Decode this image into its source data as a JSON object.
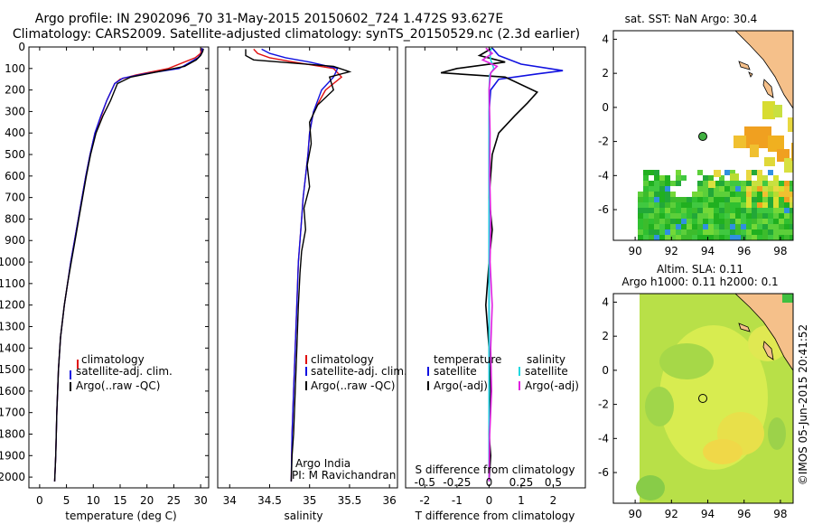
{
  "header": {
    "line1": "Argo profile: IN 2902096_70 31-May-2015 20150602_724 1.472S 93.627E",
    "line2": "Climatology: CARS2009. Satellite-adjusted climatology: synTS_20150529.nc (2.3d earlier)"
  },
  "colors": {
    "clim": "#e01010",
    "sat": "#1010e0",
    "argo": "#000000",
    "sat_s": "#20d8e0",
    "argo_s": "#e020e0",
    "land": "#f5c08a"
  },
  "depth_axis": {
    "ticks": [
      0,
      100,
      200,
      300,
      400,
      500,
      600,
      700,
      800,
      900,
      1000,
      1100,
      1200,
      1300,
      1400,
      1500,
      1600,
      1700,
      1800,
      1900,
      2000
    ],
    "ylim": [
      0,
      2050
    ]
  },
  "chart_data": [
    {
      "type": "line",
      "id": "temperature",
      "xlabel": "temperature (deg C)",
      "xlim": [
        -2,
        31.5
      ],
      "xticks": [
        0,
        5,
        10,
        15,
        20,
        25,
        30
      ],
      "legend": [
        "climatology",
        "satellite-adj. clim.",
        "Argo(..raw -QC)"
      ],
      "series": [
        {
          "name": "climatology",
          "x": [
            30.1,
            30.0,
            29.0,
            24.0,
            18.0,
            15.0,
            14.0,
            12.5,
            11.5,
            10.3,
            9.4,
            8.6,
            7.9,
            7.2,
            6.5,
            5.8,
            5.2,
            4.6,
            3.9,
            3.5,
            3.2,
            3.0,
            2.8
          ],
          "y": [
            5,
            30,
            50,
            100,
            130,
            150,
            170,
            250,
            320,
            400,
            500,
            600,
            700,
            800,
            900,
            1000,
            1100,
            1200,
            1350,
            1500,
            1700,
            1900,
            2020
          ]
        },
        {
          "name": "satellite-adj. clim.",
          "x": [
            30.3,
            30.2,
            29.5,
            26.0,
            19.5,
            15.5,
            14.0,
            12.5,
            11.4,
            10.3,
            9.4,
            8.6,
            7.9,
            7.2,
            6.5,
            5.8,
            5.2,
            4.6,
            3.9,
            3.5,
            3.2,
            3.0,
            2.8
          ],
          "y": [
            5,
            30,
            50,
            100,
            125,
            145,
            170,
            250,
            320,
            400,
            500,
            600,
            700,
            800,
            900,
            1000,
            1100,
            1200,
            1350,
            1500,
            1700,
            1900,
            2020
          ]
        },
        {
          "name": "Argo(..raw -QC)",
          "x": [
            30.5,
            30.4,
            30.0,
            29.2,
            27.0,
            22.0,
            17.0,
            14.5,
            13.2,
            11.8,
            10.5,
            9.5,
            8.7,
            8.0,
            7.3,
            6.6,
            5.9,
            5.2,
            4.6,
            3.9,
            3.5,
            3.2,
            3.0,
            2.8
          ],
          "y": [
            8,
            20,
            40,
            60,
            90,
            115,
            140,
            170,
            250,
            320,
            400,
            500,
            600,
            700,
            800,
            900,
            1000,
            1100,
            1200,
            1350,
            1500,
            1700,
            1900,
            2020
          ]
        }
      ]
    },
    {
      "type": "line",
      "id": "salinity",
      "xlabel": "salinity",
      "xlim": [
        33.85,
        36.1
      ],
      "xticks": [
        34,
        34.5,
        35,
        35.5,
        36
      ],
      "legend": [
        "climatology",
        "satellite-adj. clim.",
        "Argo(..raw -QC)"
      ],
      "annotations": [
        "Argo India",
        "PI: M Ravichandran"
      ],
      "series": [
        {
          "name": "climatology",
          "x": [
            34.3,
            34.35,
            34.5,
            34.8,
            35.3,
            35.4,
            35.2,
            35.05,
            35.0,
            34.98,
            34.95,
            34.92,
            34.9,
            34.88,
            34.86,
            34.84,
            34.82,
            34.8,
            34.78,
            34.77
          ],
          "y": [
            10,
            30,
            50,
            70,
            100,
            140,
            200,
            300,
            400,
            500,
            600,
            700,
            800,
            900,
            1000,
            1200,
            1400,
            1600,
            1800,
            2020
          ]
        },
        {
          "name": "satellite-adj. clim.",
          "x": [
            34.4,
            34.5,
            34.7,
            35.0,
            35.35,
            35.3,
            35.15,
            35.05,
            35.0,
            34.98,
            34.95,
            34.92,
            34.9,
            34.88,
            34.86,
            34.84,
            34.82,
            34.8,
            34.78,
            34.77
          ],
          "y": [
            10,
            30,
            50,
            70,
            100,
            140,
            200,
            300,
            400,
            500,
            600,
            700,
            800,
            900,
            1000,
            1200,
            1400,
            1600,
            1800,
            2020
          ]
        },
        {
          "name": "Argo(..raw -QC)",
          "x": [
            34.2,
            34.2,
            34.3,
            35.3,
            35.5,
            35.25,
            35.3,
            35.1,
            35.0,
            35.02,
            34.97,
            35.0,
            34.93,
            34.95,
            34.9,
            34.88,
            34.86,
            34.84,
            34.82,
            34.8,
            34.78,
            34.77
          ],
          "y": [
            10,
            40,
            60,
            90,
            115,
            140,
            200,
            270,
            350,
            450,
            550,
            650,
            750,
            850,
            950,
            1050,
            1200,
            1400,
            1600,
            1800,
            1900,
            2020
          ]
        }
      ]
    },
    {
      "type": "line",
      "id": "difference",
      "xlabel": "T difference from climatology",
      "xlabel_top": "S difference from climatology",
      "xlim": [
        -2.6,
        3.0
      ],
      "xticks": [
        -2,
        -1,
        0,
        1,
        2
      ],
      "xticks_top": [
        -0.5,
        -0.25,
        0,
        0.25,
        0.5
      ],
      "legend_left_title": "temperature",
      "legend_right_title": "salinity",
      "legend_left": [
        "satellite",
        "Argo(-adj)"
      ],
      "legend_right": [
        "satellite",
        "Argo(-adj)"
      ],
      "series": [
        {
          "name": "T satellite",
          "x": [
            0.1,
            0.3,
            1.0,
            2.3,
            1.5,
            0.3,
            0.05,
            0.0,
            0.0,
            0.0,
            0.0,
            0.0,
            0.0
          ],
          "y": [
            5,
            40,
            80,
            110,
            125,
            150,
            200,
            300,
            500,
            800,
            1200,
            1600,
            2020
          ]
        },
        {
          "name": "T Argo(-adj)",
          "x": [
            0.1,
            -0.3,
            0.5,
            -1.0,
            -1.5,
            0.5,
            1.5,
            1.2,
            0.8,
            0.3,
            0.1,
            0.0,
            0.1,
            0.0,
            -0.1,
            0.0,
            0.05,
            0.0,
            0.05,
            0.0
          ],
          "y": [
            5,
            40,
            70,
            100,
            120,
            140,
            210,
            260,
            320,
            400,
            500,
            700,
            850,
            1000,
            1200,
            1400,
            1600,
            1800,
            1900,
            2020
          ]
        },
        {
          "name": "S satellite",
          "x": [
            0.07,
            0.03,
            0.05,
            0.15,
            0.02,
            0.0,
            0.0,
            0.0,
            0.0,
            0.0,
            0.0,
            0.0
          ],
          "y": [
            5,
            30,
            60,
            100,
            130,
            200,
            400,
            700,
            1000,
            1400,
            1800,
            2020
          ]
        },
        {
          "name": "S Argo(-adj)",
          "x": [
            -0.1,
            0.1,
            -0.2,
            0.25,
            0.05,
            0.0,
            0.03,
            0.02,
            0.05,
            0.03,
            0.1,
            0.05,
            0.08,
            0.02,
            0.0
          ],
          "y": [
            5,
            30,
            60,
            90,
            120,
            200,
            400,
            600,
            800,
            1000,
            1200,
            1400,
            1600,
            1800,
            2020
          ]
        }
      ]
    },
    {
      "type": "heatmap",
      "id": "sst_map",
      "title": "sat. SST: NaN Argo: 30.4",
      "xticks": [
        90,
        92,
        94,
        96,
        98
      ],
      "yticks": [
        4,
        2,
        0,
        -2,
        -4,
        -6
      ],
      "xlim": [
        88.8,
        98.7
      ],
      "ylim": [
        -7.8,
        4.5
      ],
      "argo_position": [
        93.627,
        -1.472
      ]
    },
    {
      "type": "heatmap",
      "id": "sla_map",
      "title_line1": "Altim. SLA: 0.11",
      "title_line2": "Argo h1000: 0.11 h2000: 0.1",
      "xticks": [
        90,
        92,
        94,
        96,
        98
      ],
      "yticks": [
        4,
        2,
        0,
        -2,
        -4,
        -6
      ],
      "xlim": [
        88.8,
        98.7
      ],
      "ylim": [
        -7.8,
        4.5
      ],
      "argo_position": [
        93.627,
        -1.472
      ]
    }
  ],
  "footer": {
    "credit": "©IMOS 05-Jun-2015 20:41:52"
  }
}
